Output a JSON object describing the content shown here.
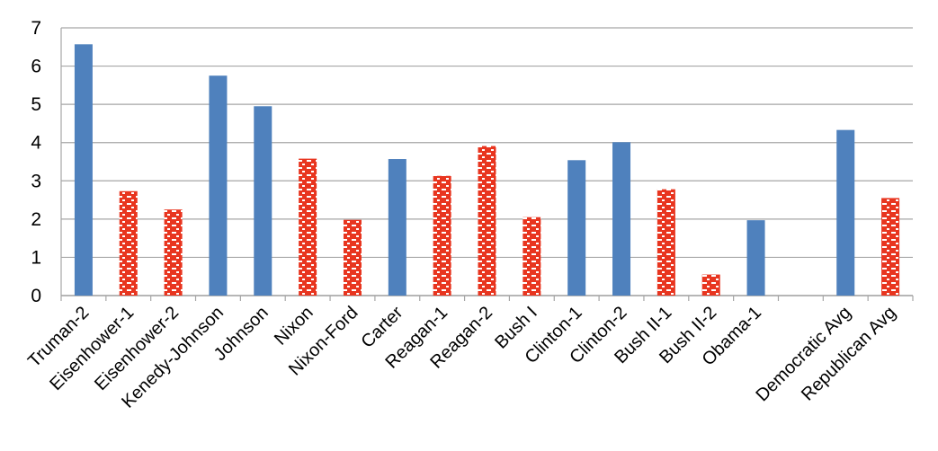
{
  "chart_data": {
    "type": "bar",
    "title": "",
    "xlabel": "",
    "ylabel": "",
    "ylim": [
      0,
      7
    ],
    "yticks": [
      0,
      1,
      2,
      3,
      4,
      5,
      6,
      7
    ],
    "grid": true,
    "legend": "none",
    "colors": {
      "democratic": "#4f81bd",
      "republican": "#e8351f",
      "republican_pattern": "#ffffff",
      "grid": "#a6a6a6"
    },
    "categories": [
      "Truman-2",
      "Eisenhower-1",
      "Eisenhower-2",
      "Kenedy-Johnson",
      "Johnson",
      "Nixon",
      "Nixon-Ford",
      "Carter",
      "Reagan-1",
      "Reagan-2",
      "Bush I",
      "Clinton-1",
      "Clinton-2",
      "Bush II-1",
      "Bush II-2",
      "Obama-1",
      "",
      "Democratic Avg",
      "Republican Avg"
    ],
    "values": [
      6.57,
      2.73,
      2.25,
      5.75,
      4.95,
      3.58,
      1.98,
      3.57,
      3.13,
      3.91,
      2.05,
      3.54,
      4.01,
      2.78,
      0.55,
      1.97,
      null,
      4.33,
      2.55
    ],
    "party": [
      "D",
      "R",
      "R",
      "D",
      "D",
      "R",
      "R",
      "D",
      "R",
      "R",
      "R",
      "D",
      "D",
      "R",
      "R",
      "D",
      "",
      "D",
      "R"
    ]
  }
}
